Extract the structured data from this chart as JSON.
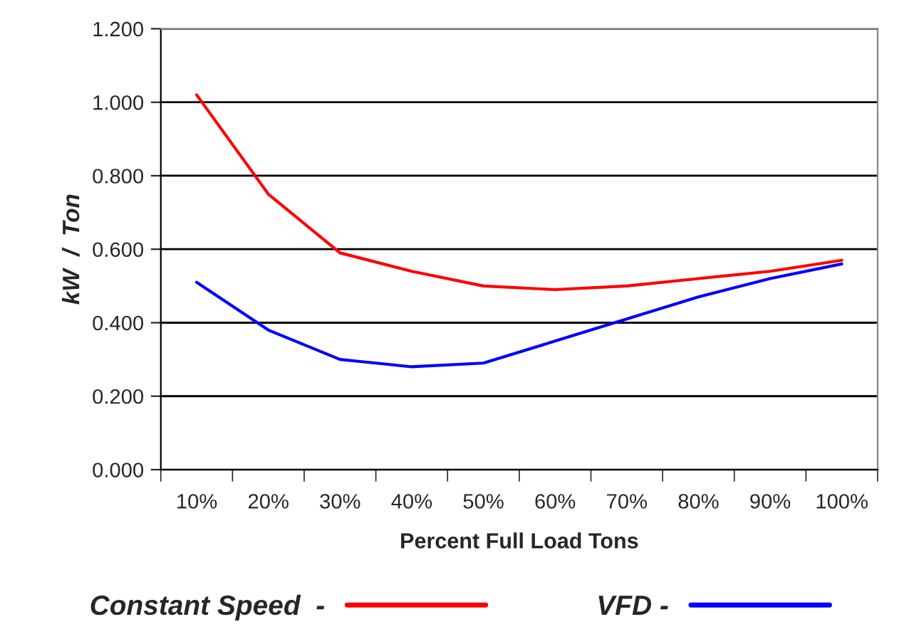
{
  "chart_data": {
    "type": "line",
    "xlabel": "Percent Full Load Tons",
    "ylabel": "kW  /  Ton",
    "categories": [
      "10%",
      "20%",
      "30%",
      "40%",
      "50%",
      "60%",
      "70%",
      "80%",
      "90%",
      "100%"
    ],
    "series": [
      {
        "name": "Constant Speed  -",
        "color": "#ff0000",
        "values": [
          1.02,
          0.75,
          0.59,
          0.54,
          0.5,
          0.49,
          0.5,
          0.52,
          0.54,
          0.57
        ]
      },
      {
        "name": "VFD -",
        "color": "#0000ff",
        "values": [
          0.51,
          0.38,
          0.3,
          0.28,
          0.29,
          0.35,
          0.41,
          0.47,
          0.52,
          0.56
        ]
      }
    ],
    "ylim": [
      0,
      1.2
    ],
    "yticks": [
      {
        "value": 0,
        "label": "0.000"
      },
      {
        "value": 0.2,
        "label": "0.200"
      },
      {
        "value": 0.4,
        "label": "0.400"
      },
      {
        "value": 0.6,
        "label": "0.600"
      },
      {
        "value": 0.8,
        "label": "0.800"
      },
      {
        "value": 1.0,
        "label": "1.000"
      },
      {
        "value": 1.2,
        "label": "1.200"
      }
    ],
    "grid": "y",
    "legend": "bottom",
    "marker": "none",
    "line_style": "solid"
  }
}
